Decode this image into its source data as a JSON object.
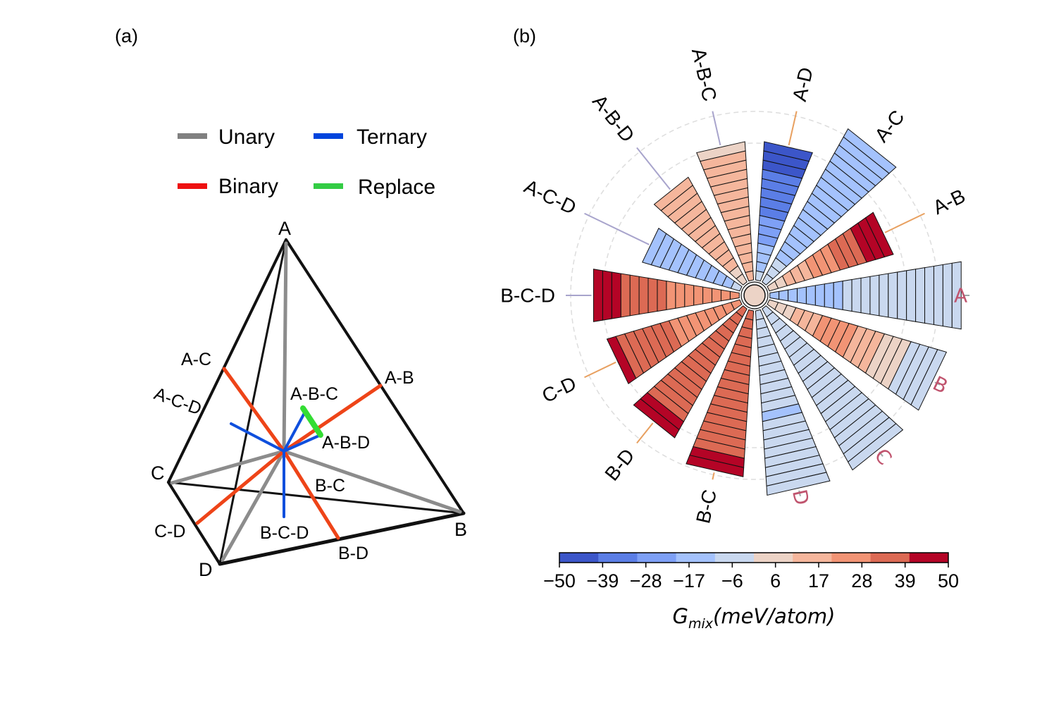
{
  "panel_a": {
    "label": "(a)",
    "legend": [
      {
        "name": "Unary",
        "color": "#808080"
      },
      {
        "name": "Ternary",
        "color": "#0044dd"
      },
      {
        "name": "Binary",
        "color": "#ee1111"
      },
      {
        "name": "Replace",
        "color": "#33cc44"
      }
    ],
    "vertices": {
      "A": "A",
      "B": "B",
      "C": "C",
      "D": "D"
    },
    "line_labels": {
      "AC": "A-C",
      "ACD": "A-C-D",
      "AB": "A-B",
      "ABC": "A-B-C",
      "ABD": "A-B-D",
      "BC": "B-C",
      "CD": "C-D",
      "BCD": "B-C-D",
      "BD": "B-D"
    }
  },
  "panel_b": {
    "label": "(b)",
    "colorbar": {
      "ticks": [
        "−50",
        "−39",
        "−28",
        "−17",
        "−6",
        "6",
        "17",
        "28",
        "39",
        "50"
      ],
      "colors": [
        "#3c56c9",
        "#5b7ee6",
        "#7ea0f6",
        "#a4c2fd",
        "#c9d8ef",
        "#ecd3c6",
        "#f5b69c",
        "#f29475",
        "#dc6a54",
        "#b40426"
      ],
      "label_main": "G",
      "label_sub": "mix",
      "label_rest": "(meV/atom)"
    },
    "colors": {
      "unary_label": "#c0546e",
      "binary_line": "#e8a060",
      "ternary_line": "#a8a4cc",
      "grid": "#dddddd"
    }
  },
  "chart_data": {
    "type": "radial-bar",
    "units": "meV/atom",
    "vmin": -50,
    "vmax": 50,
    "series": [
      {
        "name": "A",
        "group": "unary",
        "values": [
          -15,
          -14,
          -13,
          -13,
          -12,
          -12,
          -11,
          -11,
          -10,
          -10,
          -10,
          -10,
          -9,
          -9,
          -8,
          -8,
          -7,
          -6,
          -5,
          -3,
          -8
        ]
      },
      {
        "name": "B",
        "group": "unary",
        "values": [
          3,
          5,
          8,
          12,
          15,
          18,
          20,
          22,
          22,
          20,
          18,
          15,
          12,
          8,
          5,
          2,
          -1,
          -4,
          -7,
          -8
        ]
      },
      {
        "name": "C",
        "group": "unary",
        "values": [
          -3,
          -3,
          -4,
          -4,
          -4,
          -5,
          -5,
          -5,
          -5,
          -5,
          -4,
          -4,
          -4,
          -3,
          -3,
          -3,
          -3,
          -3,
          -3,
          -3
        ]
      },
      {
        "name": "D",
        "group": "unary",
        "values": [
          -5,
          -5,
          -5,
          -5,
          -5,
          -5,
          -5,
          -5,
          -5,
          -5,
          -5,
          -17,
          -5,
          -5,
          -5,
          -5,
          -5,
          -5,
          -5,
          -5
        ]
      },
      {
        "name": "B-C",
        "group": "binary",
        "values": [
          30,
          30,
          31,
          31,
          31,
          32,
          32,
          32,
          33,
          33,
          33,
          34,
          34,
          35,
          35,
          36,
          45,
          50
        ]
      },
      {
        "name": "B-D",
        "group": "binary",
        "values": [
          30,
          30,
          31,
          31,
          31,
          32,
          32,
          33,
          33,
          34,
          34,
          35,
          35,
          36,
          50,
          50
        ]
      },
      {
        "name": "C-D",
        "group": "binary",
        "values": [
          24,
          25,
          26,
          26,
          27,
          28,
          28,
          29,
          30,
          31,
          32,
          33,
          34,
          36,
          50
        ]
      },
      {
        "name": "B-C-D",
        "group": "ternary",
        "values": [
          20,
          21,
          22,
          23,
          24,
          25,
          27,
          28,
          30,
          32,
          34,
          36,
          38,
          42,
          50,
          52
        ]
      },
      {
        "name": "A-C-D",
        "group": "ternary",
        "values": [
          -10,
          -11,
          -12,
          -13,
          -14,
          -15,
          -16,
          -17,
          -18,
          -19,
          -20
        ]
      },
      {
        "name": "A-B-D",
        "group": "ternary",
        "values": [
          8,
          9,
          10,
          10,
          11,
          11,
          12,
          12,
          13,
          13,
          14,
          14,
          14
        ]
      },
      {
        "name": "A-B-C",
        "group": "ternary",
        "values": [
          18,
          17,
          16,
          15,
          14,
          13,
          13,
          12,
          12,
          11,
          11,
          10,
          10,
          10,
          9
        ]
      },
      {
        "name": "A-D",
        "group": "binary",
        "values": [
          -10,
          -13,
          -16,
          -19,
          -22,
          -25,
          -28,
          -31,
          -34,
          -36,
          -38,
          -40,
          -42,
          -44,
          -45
        ]
      },
      {
        "name": "A-C",
        "group": "binary",
        "values": [
          -8,
          -9,
          -10,
          -11,
          -12,
          -12,
          -12,
          -13,
          -13,
          -13,
          -14,
          -14,
          -14,
          -15,
          -15,
          -15,
          -16,
          -16,
          -16
        ]
      },
      {
        "name": "A-B",
        "group": "binary",
        "values": [
          5,
          8,
          11,
          14,
          17,
          20,
          23,
          26,
          30,
          34,
          38,
          42,
          46,
          50
        ]
      }
    ]
  }
}
